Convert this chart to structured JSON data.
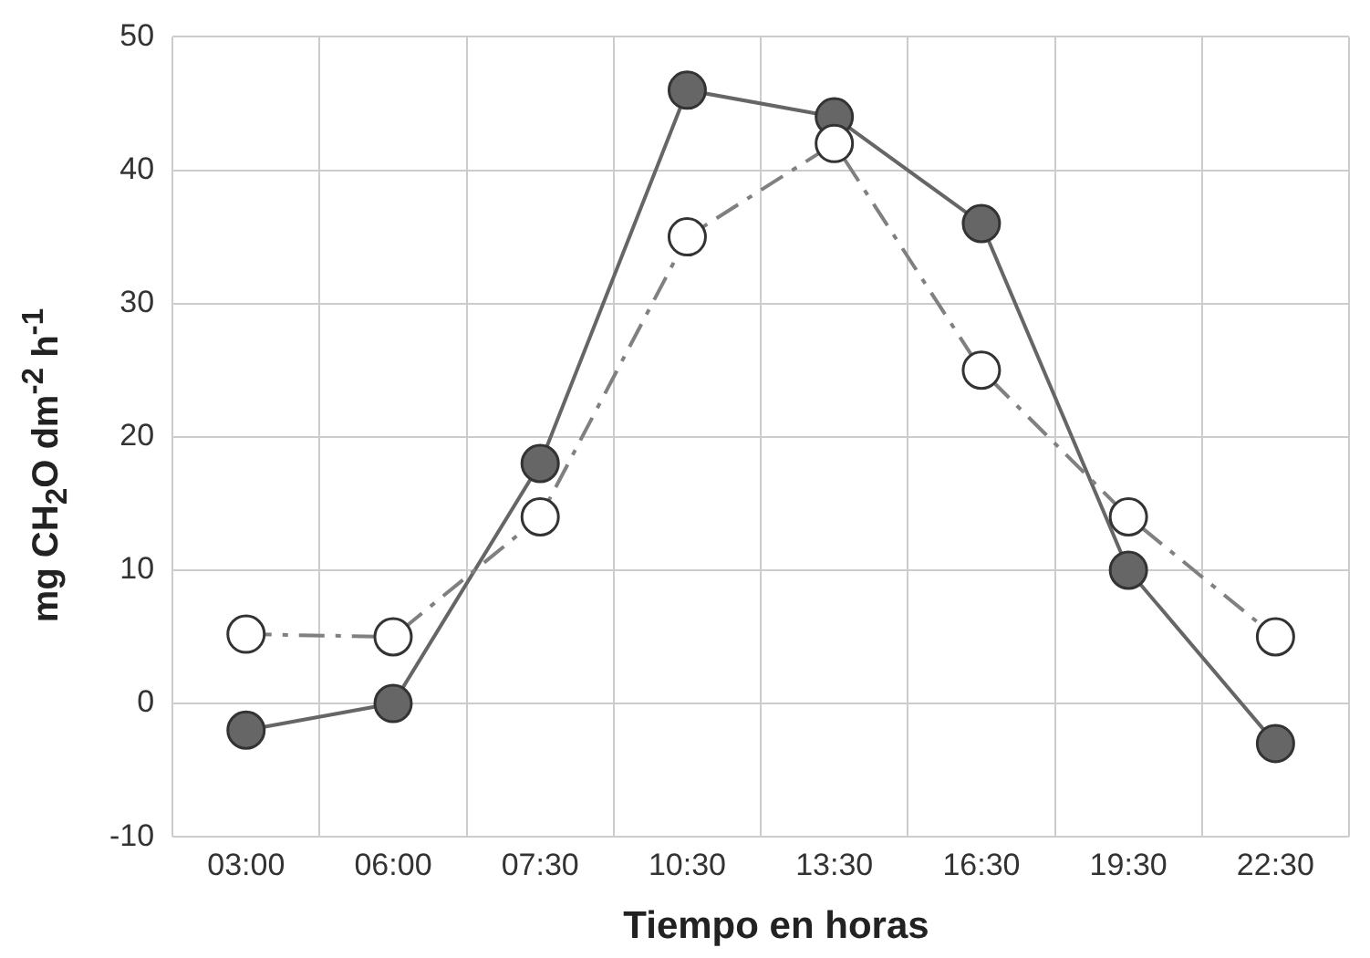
{
  "chart_data": {
    "type": "line",
    "xlabel": "Tiempo en horas",
    "ylabel": "mg CH$_{2}$O dm$^{-2}$ h$^{-1}$",
    "categories": [
      "03:00",
      "06:00",
      "07:30",
      "10:30",
      "13:30",
      "16:30",
      "19:30",
      "22:30"
    ],
    "series": [
      {
        "color": "#666666",
        "values": [
          -2,
          0,
          18,
          46,
          44,
          36,
          10,
          -3
        ],
        "line_style": "solid",
        "marker": "circle"
      },
      {
        "color": "#808080",
        "values": [
          5.2,
          5,
          14,
          35,
          42,
          25,
          14,
          5
        ],
        "line_style": "dashed",
        "marker": "circle"
      }
    ],
    "ylim": [
      -10,
      50
    ],
    "yticks": [
      -10,
      0,
      10,
      20,
      30,
      40,
      50
    ],
    "grid": true,
    "legend": false
  }
}
